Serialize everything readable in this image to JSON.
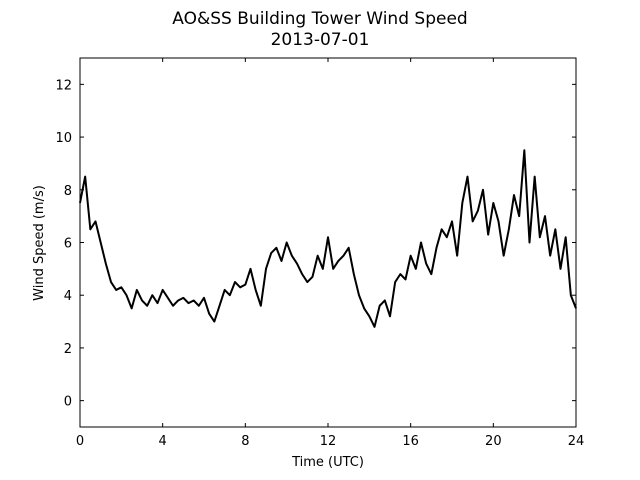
{
  "chart_data": {
    "type": "line",
    "title": "AO&SS Building Tower Wind Speed",
    "subtitle": "2013-07-01",
    "x_label": "Time (UTC)",
    "y_label": "Wind Speed (m/s)",
    "x": [
      0,
      0.25,
      0.5,
      0.75,
      1,
      1.25,
      1.5,
      1.75,
      2,
      2.25,
      2.5,
      2.75,
      3,
      3.25,
      3.5,
      3.75,
      4,
      4.25,
      4.5,
      4.75,
      5,
      5.25,
      5.5,
      5.75,
      6,
      6.25,
      6.5,
      6.75,
      7,
      7.25,
      7.5,
      7.75,
      8,
      8.25,
      8.5,
      8.75,
      9,
      9.25,
      9.5,
      9.75,
      10,
      10.25,
      10.5,
      10.75,
      11,
      11.25,
      11.5,
      11.75,
      12,
      12.25,
      12.5,
      12.75,
      13,
      13.25,
      13.5,
      13.75,
      14,
      14.25,
      14.5,
      14.75,
      15,
      15.25,
      15.5,
      15.75,
      16,
      16.25,
      16.5,
      16.75,
      17,
      17.25,
      17.5,
      17.75,
      18,
      18.25,
      18.5,
      18.75,
      19,
      19.25,
      19.5,
      19.75,
      20,
      20.25,
      20.5,
      20.75,
      21,
      21.25,
      21.5,
      21.75,
      22,
      22.25,
      22.5,
      22.75,
      23,
      23.25,
      23.5,
      23.75,
      24
    ],
    "series": [
      {
        "name": "Wind Speed",
        "color": "#000000",
        "values": [
          7.5,
          8.5,
          6.5,
          6.8,
          6,
          5.2,
          4.5,
          4.2,
          4.3,
          4,
          3.5,
          4.2,
          3.8,
          3.6,
          4,
          3.7,
          4.2,
          3.9,
          3.6,
          3.8,
          3.9,
          3.7,
          3.8,
          3.6,
          3.9,
          3.3,
          3,
          3.6,
          4.2,
          4,
          4.5,
          4.3,
          4.4,
          5,
          4.2,
          3.6,
          5,
          5.6,
          5.8,
          5.3,
          6,
          5.5,
          5.2,
          4.8,
          4.5,
          4.7,
          5.5,
          5,
          6.2,
          5,
          5.3,
          5.5,
          5.8,
          4.8,
          4,
          3.5,
          3.2,
          2.8,
          3.6,
          3.8,
          3.2,
          4.5,
          4.8,
          4.6,
          5.5,
          5,
          6,
          5.2,
          4.8,
          5.8,
          6.5,
          6.2,
          6.8,
          5.5,
          7.5,
          8.5,
          6.8,
          7.2,
          8,
          6.3,
          7.5,
          6.8,
          5.5,
          6.5,
          7.8,
          7,
          9.5,
          6,
          8.5,
          6.2,
          7,
          5.5,
          6.5,
          5,
          6.2,
          4,
          3.5
        ]
      }
    ],
    "xlim": [
      0,
      24
    ],
    "xticks": [
      0,
      4,
      8,
      12,
      16,
      20,
      24
    ],
    "ylim": [
      -1,
      13
    ],
    "yticks": [
      0,
      2,
      4,
      6,
      8,
      10,
      12
    ],
    "grid": false
  }
}
